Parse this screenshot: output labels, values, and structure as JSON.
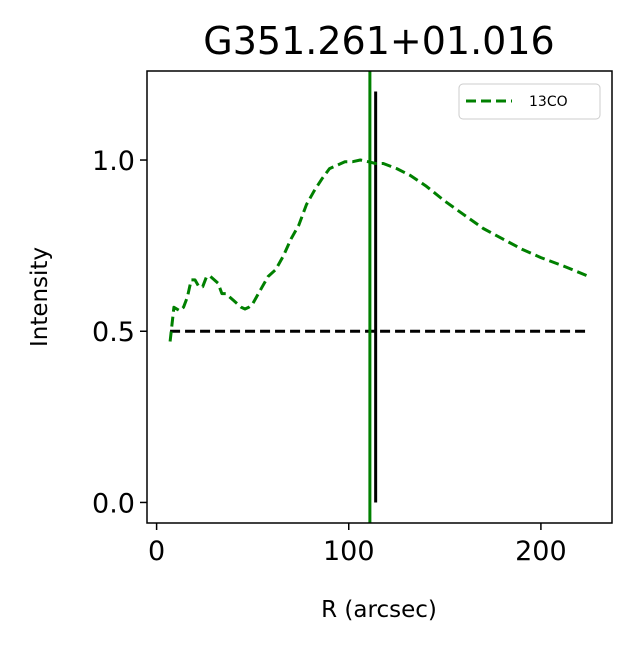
{
  "chart_data": {
    "type": "line",
    "title": "G351.261+01.016",
    "xlabel": "R (arcsec)",
    "ylabel": "Intensity",
    "xlim": [
      -5,
      237
    ],
    "ylim": [
      -0.06,
      1.26
    ],
    "xticks": [
      0,
      100,
      200
    ],
    "xtick_labels": [
      "0",
      "100",
      "200"
    ],
    "yticks": [
      0.0,
      0.5,
      1.0
    ],
    "ytick_labels": [
      "0.0",
      "0.5",
      "1.0"
    ],
    "grid": false,
    "legend": {
      "placement": "top-right",
      "entries": [
        "13CO"
      ]
    },
    "series": [
      {
        "name": "13CO",
        "color": "#008000",
        "style": "dashed",
        "x": [
          7,
          9,
          12,
          14,
          16,
          18,
          20,
          22,
          24,
          26,
          28,
          30,
          32,
          34,
          36,
          38,
          40,
          42,
          44,
          46,
          48,
          50,
          52,
          55,
          58,
          62,
          66,
          70,
          74,
          78,
          82,
          86,
          90,
          94,
          98,
          102,
          106,
          110,
          114,
          118,
          125,
          132,
          140,
          150,
          160,
          170,
          180,
          190,
          200,
          212,
          225
        ],
        "y": [
          0.47,
          0.57,
          0.56,
          0.57,
          0.6,
          0.65,
          0.65,
          0.63,
          0.63,
          0.66,
          0.66,
          0.65,
          0.64,
          0.61,
          0.61,
          0.6,
          0.59,
          0.58,
          0.57,
          0.565,
          0.57,
          0.58,
          0.6,
          0.63,
          0.66,
          0.68,
          0.72,
          0.77,
          0.81,
          0.87,
          0.91,
          0.945,
          0.975,
          0.985,
          0.995,
          0.995,
          1.0,
          0.995,
          0.99,
          0.99,
          0.975,
          0.955,
          0.925,
          0.88,
          0.84,
          0.8,
          0.77,
          0.74,
          0.715,
          0.69,
          0.66
        ]
      }
    ],
    "reference_lines": [
      {
        "kind": "horizontal",
        "y": 0.5,
        "x_range": [
          7,
          225
        ],
        "color": "#000000",
        "style": "dashed"
      },
      {
        "kind": "vertical",
        "x": 111,
        "color": "#008000",
        "style": "solid",
        "full_height": true
      },
      {
        "kind": "vertical",
        "x": 114,
        "y_range": [
          0.0,
          1.2
        ],
        "color": "#000000",
        "style": "solid"
      }
    ]
  }
}
